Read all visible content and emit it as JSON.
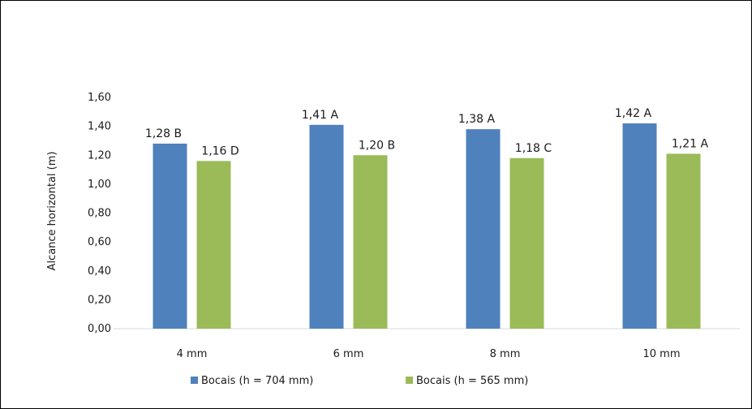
{
  "chart_data": {
    "type": "bar",
    "title": "",
    "xlabel": "",
    "ylabel": "Alcance horizontal (m)",
    "ylim": [
      0,
      1.6
    ],
    "y_ticks": [
      "0,00",
      "0,20",
      "0,40",
      "0,60",
      "0,80",
      "1,00",
      "1,20",
      "1,40",
      "1,60"
    ],
    "categories": [
      "4 mm",
      "6 mm",
      "8 mm",
      "10 mm"
    ],
    "series": [
      {
        "name": "Bocais  (h = 704 mm)",
        "color": "#4f81bd",
        "values": [
          1.28,
          1.41,
          1.38,
          1.42
        ],
        "labels": [
          "1,28 B",
          "1,41 A",
          "1,38 A",
          "1,42 A"
        ]
      },
      {
        "name": "Bocais  (h = 565 mm)",
        "color": "#9bbb59",
        "values": [
          1.16,
          1.2,
          1.18,
          1.21
        ],
        "labels": [
          "1,16 D",
          "1,20 B",
          "1,18 C",
          "1,21 A"
        ]
      }
    ],
    "grid": false,
    "legend_position": "bottom"
  }
}
